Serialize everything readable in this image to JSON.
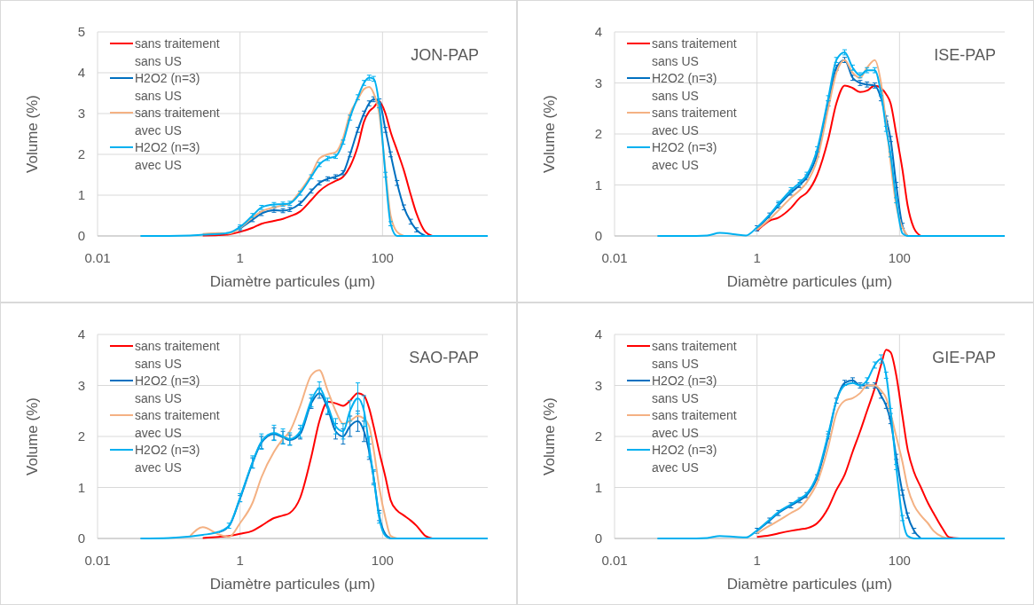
{
  "chart_data": [
    {
      "type": "line",
      "title": "JON-PAP",
      "xlabel": "Diamètre particules (µm)",
      "ylabel": "Volume (%)",
      "log": "x",
      "grid": true,
      "legend": "top left",
      "xlim": [
        0.01,
        3000
      ],
      "xticks": [
        0.01,
        1,
        100
      ],
      "ylim": [
        0,
        5
      ],
      "yticks": [
        0,
        1,
        2,
        3,
        4,
        5
      ],
      "x": [
        0.04,
        0.1,
        0.2,
        0.3,
        0.5,
        0.7,
        1,
        1.5,
        2,
        3,
        4,
        5,
        7,
        10,
        13,
        17,
        22,
        28,
        35,
        45,
        55,
        65,
        75,
        90,
        110,
        130,
        160,
        200,
        250,
        300,
        400,
        500,
        700,
        1000,
        3000
      ],
      "series": [
        {
          "name": "sans traitement sans US",
          "color": "#ff0000",
          "values": [
            null,
            null,
            null,
            0.01,
            0.02,
            0.04,
            0.1,
            0.2,
            0.3,
            0.37,
            0.42,
            0.48,
            0.6,
            0.88,
            1.1,
            1.25,
            1.35,
            1.45,
            1.7,
            2.2,
            2.8,
            3.05,
            3.15,
            3.3,
            3.0,
            2.55,
            2.1,
            1.6,
            1.0,
            0.55,
            0.1,
            0,
            null,
            null,
            null
          ]
        },
        {
          "name": "H2O2 (n=3) sans US",
          "color": "#0070c0",
          "values": [
            null,
            null,
            null,
            null,
            null,
            null,
            0.18,
            0.4,
            0.55,
            0.63,
            0.62,
            0.65,
            0.8,
            1.1,
            1.3,
            1.4,
            1.45,
            1.55,
            2.0,
            2.6,
            3.0,
            3.25,
            3.35,
            3.3,
            2.6,
            2.0,
            1.3,
            0.7,
            0.35,
            0.15,
            0,
            null,
            null,
            null,
            null
          ],
          "errors": [
            null,
            null,
            null,
            null,
            null,
            null,
            0.05,
            0.05,
            0.05,
            0.05,
            0.05,
            0.05,
            0.05,
            0.05,
            0.05,
            0.05,
            0.05,
            0.05,
            0.06,
            0.06,
            0.06,
            0.06,
            0.06,
            0.06,
            0.06,
            0.06,
            0.06,
            0.06,
            0.06,
            0.05,
            null,
            null,
            null,
            null,
            null
          ]
        },
        {
          "name": "sans traitement avec US",
          "color": "#f4b183",
          "values": [
            null,
            null,
            null,
            0.05,
            0.07,
            0.06,
            0.2,
            0.45,
            0.6,
            0.7,
            0.75,
            0.8,
            1.1,
            1.5,
            1.9,
            2.0,
            2.05,
            2.4,
            3.0,
            3.35,
            3.6,
            3.65,
            3.5,
            3.0,
            1.6,
            0.5,
            0.1,
            0,
            null,
            null,
            null,
            null,
            null,
            null,
            null
          ]
        },
        {
          "name": "H2O2 (n=3) avec US",
          "color": "#00b0f0",
          "values": [
            0,
            0,
            0.01,
            0.03,
            0.05,
            0.08,
            0.22,
            0.5,
            0.7,
            0.77,
            0.78,
            0.8,
            1.05,
            1.45,
            1.75,
            1.9,
            1.95,
            2.3,
            2.9,
            3.4,
            3.75,
            3.88,
            3.85,
            3.2,
            1.5,
            0.3,
            0,
            0,
            0,
            0,
            0,
            0,
            0,
            0,
            0
          ],
          "errors": [
            null,
            null,
            null,
            null,
            null,
            null,
            0.05,
            0.05,
            0.05,
            0.05,
            0.05,
            0.05,
            0.05,
            0.05,
            0.05,
            0.05,
            0.05,
            0.05,
            0.06,
            0.06,
            0.06,
            0.06,
            0.06,
            0.06,
            0.06,
            0.05,
            null,
            null,
            null,
            null,
            null,
            null,
            null,
            null,
            null
          ]
        }
      ]
    },
    {
      "type": "line",
      "title": "ISE-PAP",
      "xlabel": "Diamètre particules (µm)",
      "ylabel": "Volume (%)",
      "log": "x",
      "grid": true,
      "legend": "top left",
      "xlim": [
        0.01,
        3000
      ],
      "xticks": [
        0.01,
        1,
        100
      ],
      "ylim": [
        0,
        4
      ],
      "yticks": [
        0,
        1,
        2,
        3,
        4
      ],
      "x": [
        0.04,
        0.1,
        0.2,
        0.3,
        0.5,
        0.7,
        1,
        1.5,
        2,
        3,
        4,
        5,
        7,
        10,
        13,
        17,
        22,
        28,
        35,
        45,
        55,
        65,
        75,
        90,
        110,
        130,
        160,
        200,
        250,
        300,
        400,
        500,
        700,
        1000,
        3000
      ],
      "series": [
        {
          "name": "sans traitement sans US",
          "color": "#ff0000",
          "values": [
            null,
            null,
            null,
            null,
            null,
            null,
            0.1,
            0.3,
            0.36,
            0.55,
            0.75,
            0.85,
            1.2,
            1.9,
            2.6,
            2.95,
            2.9,
            2.82,
            2.85,
            2.95,
            2.9,
            2.78,
            2.6,
            2.0,
            1.3,
            0.6,
            0.15,
            0,
            null,
            null,
            null,
            null,
            null,
            null,
            null
          ]
        },
        {
          "name": "H2O2 (n=3) sans US",
          "color": "#0070c0",
          "values": [
            null,
            null,
            null,
            null,
            null,
            null,
            0.15,
            0.4,
            0.6,
            0.85,
            1.0,
            1.15,
            1.6,
            2.6,
            3.3,
            3.45,
            3.1,
            3.0,
            2.97,
            2.95,
            2.7,
            2.3,
            1.9,
            1.0,
            0.2,
            0,
            null,
            null,
            null,
            null,
            null,
            null,
            null,
            null,
            null
          ],
          "errors": [
            null,
            null,
            null,
            null,
            null,
            null,
            0.05,
            0.05,
            0.05,
            0.05,
            0.05,
            0.05,
            0.05,
            0.05,
            0.05,
            0.05,
            0.05,
            0.05,
            0.05,
            0.05,
            0.05,
            0.05,
            0.05,
            0.05,
            0.05,
            null,
            null,
            null,
            null,
            null,
            null,
            null,
            null,
            null,
            null
          ]
        },
        {
          "name": "sans traitement avec US",
          "color": "#f4b183",
          "values": [
            null,
            null,
            null,
            null,
            null,
            null,
            0.12,
            0.33,
            0.5,
            0.75,
            0.9,
            1.05,
            1.5,
            2.5,
            3.2,
            3.45,
            3.2,
            3.1,
            3.3,
            3.45,
            3.0,
            2.2,
            null,
            0.6,
            null,
            0,
            null,
            null,
            null,
            null,
            null,
            null,
            null,
            null,
            null
          ]
        },
        {
          "name": "H2O2 (n=3) avec US",
          "color": "#00b0f0",
          "values": [
            0,
            0,
            0.01,
            0.06,
            0.03,
            0.01,
            0.17,
            0.42,
            0.63,
            0.9,
            1.05,
            1.2,
            1.7,
            2.7,
            3.45,
            3.6,
            3.3,
            3.15,
            3.25,
            3.25,
            2.8,
            2.1,
            1.6,
            0.7,
            0.05,
            0,
            0,
            0,
            0,
            0,
            0,
            0,
            0,
            0,
            0
          ],
          "errors": [
            null,
            null,
            null,
            null,
            null,
            null,
            null,
            null,
            0.05,
            0.05,
            0.05,
            0.05,
            0.05,
            0.05,
            0.05,
            0.05,
            0.05,
            0.05,
            0.05,
            0.05,
            0.05,
            0.05,
            0.05,
            0.05,
            null,
            null,
            null,
            null,
            null,
            null,
            null,
            null,
            null,
            null,
            null
          ]
        }
      ]
    },
    {
      "type": "line",
      "title": "SAO-PAP",
      "xlabel": "Diamètre particules (µm)",
      "ylabel": "Volume (%)",
      "log": "x",
      "grid": true,
      "legend": "top left",
      "xlim": [
        0.01,
        3000
      ],
      "xticks": [
        0.01,
        1,
        100
      ],
      "ylim": [
        0,
        4
      ],
      "yticks": [
        0,
        1,
        2,
        3,
        4
      ],
      "x": [
        0.04,
        0.1,
        0.2,
        0.3,
        0.5,
        0.7,
        1,
        1.5,
        2,
        3,
        4,
        5,
        7,
        10,
        13,
        17,
        22,
        28,
        35,
        45,
        55,
        65,
        75,
        90,
        110,
        130,
        160,
        200,
        250,
        300,
        400,
        500,
        700,
        1000,
        3000
      ],
      "series": [
        {
          "name": "sans traitement sans US",
          "color": "#ff0000",
          "values": [
            null,
            null,
            null,
            0.01,
            0.03,
            0.05,
            0.09,
            0.15,
            0.25,
            0.4,
            0.45,
            0.5,
            0.8,
            1.6,
            2.3,
            2.68,
            2.65,
            2.6,
            2.7,
            2.85,
            2.8,
            2.55,
            2.2,
            1.7,
            1.2,
            0.75,
            0.55,
            0.45,
            0.35,
            0.25,
            0.05,
            0,
            null,
            null,
            null
          ]
        },
        {
          "name": "H2O2 (n=3) sans US",
          "color": "#0070c0",
          "values": [
            null,
            null,
            null,
            null,
            0.12,
            0.24,
            0.78,
            1.48,
            1.88,
            2.05,
            1.98,
            1.93,
            2.05,
            2.65,
            2.85,
            2.55,
            2.1,
            2.0,
            2.2,
            2.3,
            2.1,
            1.7,
            1.2,
            0.45,
            0.08,
            0,
            null,
            null,
            null,
            null,
            null,
            null,
            null,
            null,
            null
          ],
          "errors": [
            null,
            null,
            null,
            null,
            null,
            null,
            0.06,
            0.1,
            0.12,
            0.12,
            0.12,
            0.1,
            0.1,
            0.1,
            0.1,
            0.12,
            0.15,
            0.15,
            0.2,
            0.2,
            0.2,
            0.15,
            0.12,
            0.1,
            null,
            null,
            null,
            null,
            null,
            null,
            null,
            null,
            null,
            null,
            null
          ]
        },
        {
          "name": "sans traitement avec US",
          "color": "#f4b183",
          "values": [
            null,
            null,
            0.05,
            0.22,
            0.08,
            0.03,
            0.3,
            0.7,
            1.2,
            1.7,
            1.95,
            2.1,
            2.6,
            3.2,
            3.3,
            2.9,
            2.5,
            2.25,
            2.3,
            2.4,
            2.35,
            2.2,
            1.75,
            1.0,
            0.4,
            0.05,
            0,
            null,
            null,
            null,
            null,
            null,
            null,
            null,
            null
          ]
        },
        {
          "name": "H2O2 (n=3) avec US",
          "color": "#00b0f0",
          "values": [
            0,
            0.01,
            0.04,
            0.07,
            0.13,
            0.25,
            0.8,
            1.5,
            1.9,
            2.07,
            2.0,
            1.95,
            2.1,
            2.7,
            2.95,
            2.6,
            2.2,
            2.1,
            2.5,
            2.75,
            2.5,
            1.8,
            1.2,
            0.4,
            0.05,
            0,
            0,
            0,
            0,
            0,
            0,
            0,
            0,
            0,
            0
          ],
          "errors": [
            null,
            null,
            null,
            null,
            null,
            0.05,
            0.08,
            0.12,
            0.15,
            0.15,
            0.15,
            0.12,
            0.12,
            0.12,
            0.12,
            0.15,
            0.15,
            0.15,
            0.2,
            0.3,
            0.3,
            0.2,
            0.15,
            0.1,
            null,
            null,
            null,
            null,
            null,
            null,
            null,
            null,
            null,
            null,
            null
          ]
        }
      ]
    },
    {
      "type": "line",
      "title": "GIE-PAP",
      "xlabel": "Diamètre particules (µm)",
      "ylabel": "Volume (%)",
      "log": "x",
      "grid": true,
      "legend": "top left",
      "xlim": [
        0.01,
        3000
      ],
      "xticks": [
        0.01,
        1,
        100
      ],
      "ylim": [
        0,
        4
      ],
      "yticks": [
        0,
        1,
        2,
        3,
        4
      ],
      "x": [
        0.04,
        0.1,
        0.2,
        0.3,
        0.5,
        0.7,
        1,
        1.5,
        2,
        3,
        4,
        5,
        7,
        10,
        13,
        17,
        22,
        28,
        35,
        45,
        55,
        65,
        75,
        90,
        110,
        130,
        160,
        200,
        250,
        300,
        400,
        500,
        700,
        1000,
        3000
      ],
      "series": [
        {
          "name": "sans traitement sans US",
          "color": "#ff0000",
          "values": [
            null,
            null,
            null,
            null,
            null,
            null,
            0.03,
            0.06,
            0.1,
            0.15,
            0.18,
            0.2,
            0.3,
            0.6,
            0.95,
            1.25,
            1.7,
            2.1,
            2.5,
            2.95,
            3.4,
            3.7,
            3.65,
            3.2,
            2.4,
            1.75,
            1.3,
            1.0,
            0.7,
            0.5,
            0.2,
            0.02,
            0,
            null,
            null
          ]
        },
        {
          "name": "H2O2 (n=3) sans US",
          "color": "#0070c0",
          "values": [
            null,
            null,
            null,
            null,
            null,
            null,
            0.15,
            0.35,
            0.5,
            0.65,
            0.75,
            0.85,
            1.2,
            2.0,
            2.7,
            3.05,
            3.1,
            3.0,
            3.0,
            3.0,
            2.8,
            2.6,
            2.3,
            1.6,
            0.9,
            0.45,
            0.15,
            0,
            null,
            null,
            null,
            null,
            null,
            null,
            null
          ],
          "errors": [
            null,
            null,
            null,
            null,
            null,
            null,
            0.05,
            0.05,
            0.05,
            0.05,
            0.05,
            0.05,
            0.05,
            0.05,
            0.05,
            0.05,
            0.05,
            0.05,
            0.05,
            0.05,
            0.05,
            0.05,
            0.05,
            0.05,
            0.05,
            0.05,
            0.05,
            null,
            null,
            null,
            null,
            null,
            null,
            null,
            null
          ]
        },
        {
          "name": "sans traitement avec US",
          "color": "#f4b183",
          "values": [
            null,
            null,
            null,
            null,
            null,
            null,
            0.1,
            0.25,
            0.35,
            0.5,
            0.6,
            0.75,
            1.1,
            1.8,
            2.45,
            2.7,
            2.75,
            2.85,
            3.0,
            3.0,
            2.9,
            2.75,
            2.45,
            2.0,
            1.5,
            1.0,
            0.65,
            0.45,
            0.3,
            0.15,
            0.03,
            0,
            null,
            null,
            null
          ]
        },
        {
          "name": "H2O2 (n=3) avec US",
          "color": "#00b0f0",
          "values": [
            0,
            0,
            0.01,
            0.05,
            0.03,
            0.02,
            0.16,
            0.37,
            0.52,
            0.67,
            0.78,
            0.88,
            1.25,
            2.05,
            2.7,
            3.0,
            3.05,
            3.0,
            3.1,
            3.4,
            3.52,
            3.2,
            2.5,
            1.4,
            0.4,
            0.05,
            0,
            0,
            0,
            0,
            0,
            0,
            0,
            0,
            0
          ],
          "errors": [
            null,
            null,
            null,
            null,
            null,
            null,
            null,
            null,
            null,
            null,
            null,
            null,
            null,
            0.05,
            null,
            null,
            null,
            null,
            0.05,
            0.06,
            0.08,
            0.06,
            0.05,
            0.05,
            0.05,
            null,
            null,
            null,
            null,
            null,
            null,
            null,
            null,
            null,
            null
          ]
        }
      ]
    }
  ]
}
